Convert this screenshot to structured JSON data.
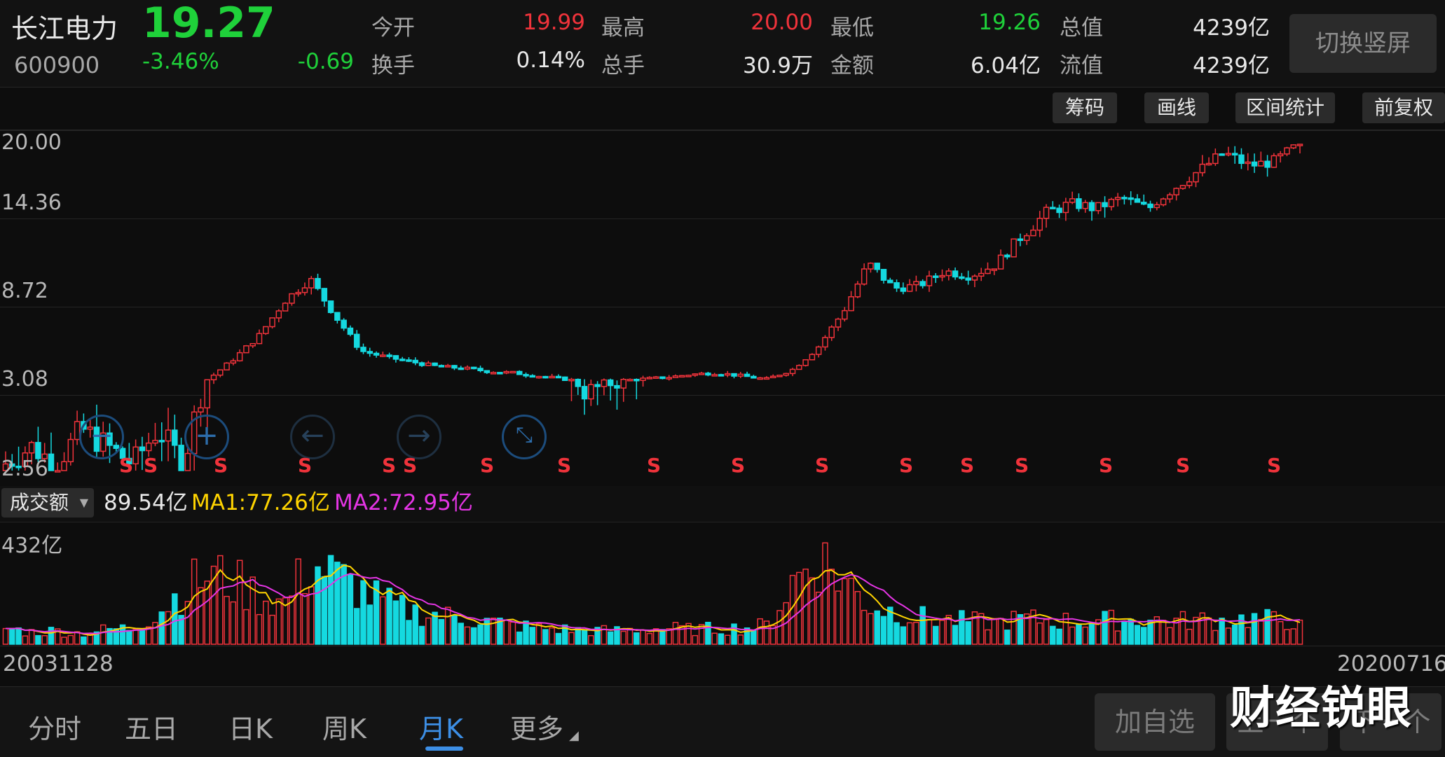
{
  "header": {
    "stock_name": "长江电力",
    "price": "19.27",
    "code": "600900",
    "change_pct": "-3.46%",
    "change": "-0.69",
    "quote_items": [
      {
        "label": "今开",
        "value": "19.99",
        "color": "#f0333b"
      },
      {
        "label": "换手",
        "value": "0.14%",
        "color": "#e8e8e8"
      },
      {
        "label": "最高",
        "value": "20.00",
        "color": "#f0333b"
      },
      {
        "label": "总手",
        "value": "30.9万",
        "color": "#e8e8e8"
      },
      {
        "label": "最低",
        "value": "19.26",
        "color": "#1fd13a"
      },
      {
        "label": "金额",
        "value": "6.04亿",
        "color": "#e8e8e8"
      },
      {
        "label": "总值",
        "value": "4239亿",
        "color": "#e8e8e8"
      },
      {
        "label": "流值",
        "value": "4239亿",
        "color": "#e8e8e8"
      }
    ],
    "switch_label": "切换竖屏"
  },
  "toolbar": {
    "chips_label": "筹码",
    "draw_label": "画线",
    "range_stats_label": "区间统计",
    "adjust_label": "前复权"
  },
  "chart_data": {
    "type": "candlestick",
    "y_ticks": [
      "20.00",
      "14.36",
      "8.72",
      "3.08",
      "2.56"
    ],
    "ylim": [
      2.56,
      20.0
    ],
    "x_start": "20031128",
    "x_end": "20200716",
    "signal_marker": "S",
    "signal_count": 17,
    "up_color": "#f0333b",
    "down_color": "#15d9e0",
    "price_trend": [
      2.6,
      2.7,
      2.6,
      2.8,
      2.7,
      2.6,
      2.8,
      2.6,
      3.2,
      4.5,
      6.0,
      8.2,
      9.6,
      7.2,
      5.0,
      4.6,
      4.3,
      4.0,
      3.9,
      3.7,
      3.6,
      3.4,
      3.2,
      3.0,
      3.1,
      3.2,
      3.3,
      3.5,
      3.6,
      3.4,
      3.2,
      3.8,
      5.2,
      7.5,
      10.6,
      9.0,
      9.2,
      10.1,
      9.8,
      10.5,
      12.3,
      13.8,
      14.5,
      14.1,
      15.0,
      14.0,
      15.8,
      17.5,
      19.2,
      18.0,
      18.4,
      20.0
    ]
  },
  "volume": {
    "indicator_label": "成交额",
    "current": "89.54亿",
    "ma1": "MA1:77.26亿",
    "ma2": "MA2:72.95亿",
    "ma1_color": "#ffd400",
    "ma2_color": "#e535e5",
    "max_label": "432亿",
    "volume_trend": [
      60,
      45,
      50,
      40,
      55,
      60,
      120,
      200,
      260,
      230,
      180,
      150,
      300,
      250,
      200,
      150,
      120,
      110,
      95,
      85,
      70,
      60,
      55,
      50,
      50,
      55,
      60,
      55,
      58,
      60,
      70,
      230,
      330,
      240,
      150,
      120,
      100,
      90,
      85,
      80,
      95,
      90,
      85,
      90,
      88,
      92,
      85,
      90,
      88,
      95,
      90,
      89
    ]
  },
  "bottom_tabs": [
    "分时",
    "五日",
    "日K",
    "周K",
    "月K",
    "更多"
  ],
  "active_tab": 4,
  "bottom_buttons": {
    "add_watchlist": "加自选",
    "prev": "上一个",
    "next": "下一个"
  },
  "watermark": "财经锐眼"
}
